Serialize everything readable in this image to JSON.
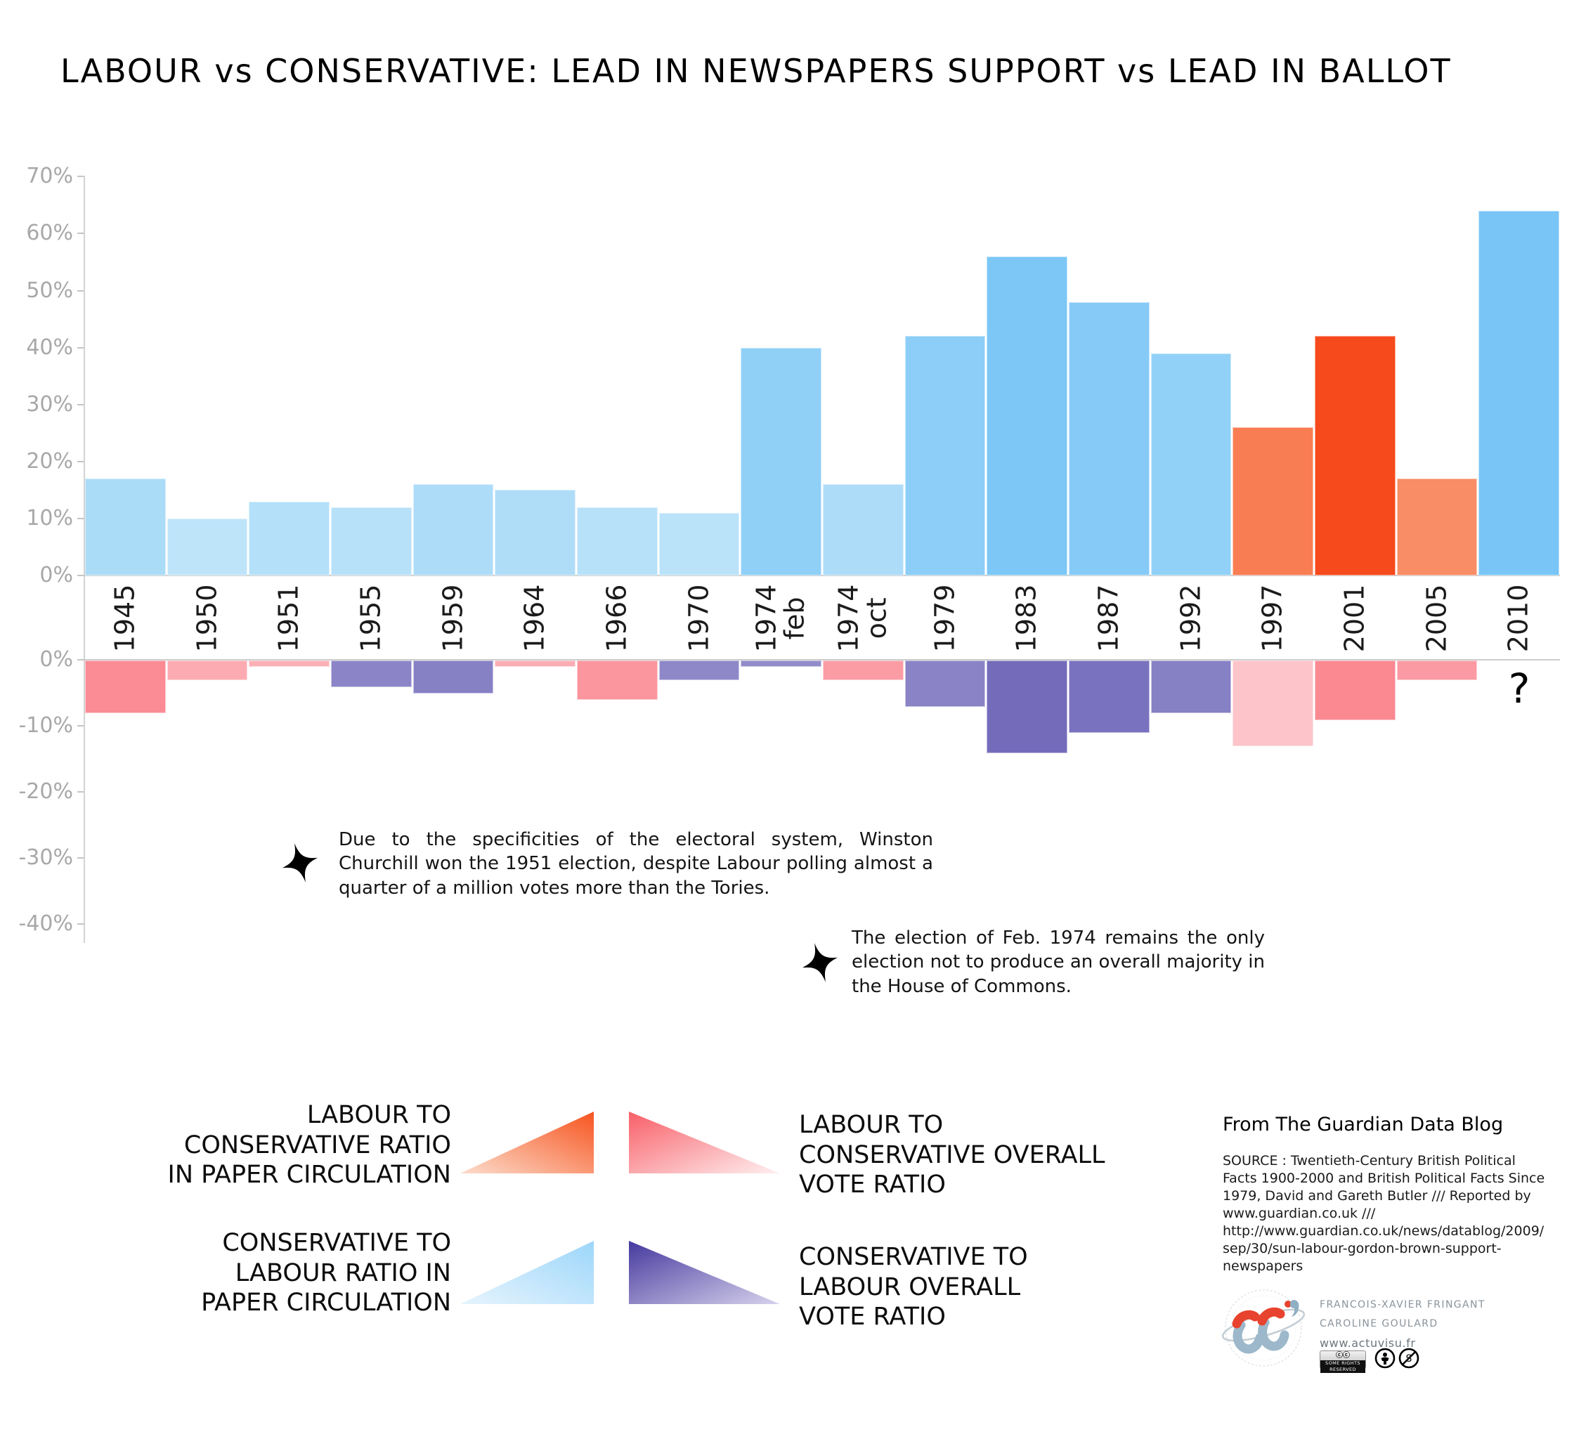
{
  "title": "LABOUR vs CONSERVATIVE: LEAD IN NEWSPAPERS SUPPORT vs LEAD IN BALLOT",
  "chart_data": {
    "type": "bar",
    "orientation": "diverging-vertical",
    "categories": [
      "1945",
      "1950",
      "1951",
      "1955",
      "1959",
      "1964",
      "1966",
      "1970",
      "1974\nfeb",
      "1974\noct",
      "1979",
      "1983",
      "1987",
      "1992",
      "1997",
      "2001",
      "2005",
      "2010"
    ],
    "series": [
      {
        "name": "Lead in newspapers support (paper circulation ratio)",
        "axis": "top",
        "values": [
          17,
          10,
          13,
          12,
          16,
          15,
          12,
          11,
          40,
          16,
          42,
          56,
          48,
          39,
          26,
          42,
          17,
          64
        ],
        "colors": [
          "#aadcf8",
          "#bee4fa",
          "#b4e0f9",
          "#b7e1f9",
          "#acdcf8",
          "#afddf8",
          "#b7e1f9",
          "#bae3f9",
          "#90d0f7",
          "#acdcf8",
          "#8ccef7",
          "#7cc7f6",
          "#86cbf7",
          "#91d1f7",
          "#f97d53",
          "#f6491c",
          "#f98d65",
          "#79c5f6"
        ]
      },
      {
        "name": "Lead in ballot (overall vote ratio)",
        "axis": "bottom",
        "values": [
          -8,
          -3,
          -1,
          -4,
          -5,
          -1,
          -6,
          -3,
          -1,
          -3,
          -7,
          -14,
          -11,
          -8,
          -13,
          -9,
          -3,
          null
        ],
        "colors": [
          "#fb8b94",
          "#fcabb2",
          "#fcb0b6",
          "#8b85c8",
          "#8680c5",
          "#fcadb4",
          "#fb959e",
          "#8e88c9",
          "#928cca",
          "#fb9ca4",
          "#8a83c6",
          "#746cba",
          "#7972be",
          "#8680c5",
          "#fdc4c9",
          "#fa8992",
          "#fb9aa2",
          null
        ]
      }
    ],
    "top_axis": {
      "tick_labels": [
        "70%",
        "60%",
        "50%",
        "40%",
        "30%",
        "20%",
        "10%",
        "0%"
      ],
      "tick_values": [
        70,
        60,
        50,
        40,
        30,
        20,
        10,
        0
      ],
      "range": [
        0,
        70
      ]
    },
    "bottom_axis": {
      "tick_labels": [
        "0%",
        "-10%",
        "-20%",
        "-30%",
        "-40%"
      ],
      "tick_values": [
        0,
        -10,
        -20,
        -30,
        -40
      ],
      "range": [
        0,
        -40
      ]
    },
    "grid": false,
    "legend_position": "bottom",
    "unknown_value_label": "?"
  },
  "annotations": [
    {
      "text": "Due to the specificities of the electoral system, Winston Churchill won the 1951 election, despite Labour polling almost a quarter of a million votes more than the Tories."
    },
    {
      "text": "The election of Feb. 1974 remains the only election not to produce an overall majority in the House of Commons."
    }
  ],
  "legend": {
    "items": [
      {
        "label": "LABOUR TO\nCONSERVATIVE RATIO\nIN PAPER CIRCULATION",
        "gradient": [
          "#fcdccb",
          "#f7541f"
        ],
        "shape": "apex-top-right"
      },
      {
        "label": "LABOUR TO\nCONSERVATIVE OVERALL\nVOTE RATIO",
        "gradient": [
          "#f85f68",
          "#feeff0"
        ],
        "shape": "apex-top-left"
      },
      {
        "label": "CONSERVATIVE TO\nLABOUR RATIO IN\nPAPER CIRCULATION",
        "gradient": [
          "#e6f4fd",
          "#9cd6fa"
        ],
        "shape": "apex-top-right"
      },
      {
        "label": "CONSERVATIVE TO\nLABOUR OVERALL\nVOTE RATIO",
        "gradient": [
          "#46399e",
          "#d6d2ec"
        ],
        "shape": "apex-top-left"
      }
    ]
  },
  "attribution": {
    "heading": "From The Guardian Data Blog",
    "source": "SOURCE : Twentieth-Century British Political\nFacts 1900-2000 and British Political Facts Since\n1979, David and Gareth Butler /// Reported by\nwww.guardian.co.uk  ///\nhttp://www.guardian.co.uk/news/datablog/2009/\nsep/30/sun-labour-gordon-brown-support-\nnewspapers",
    "credits": [
      "FRANCOIS-XAVIER FRINGANT",
      "CAROLINE GOULARD",
      "www.actuvisu.fr"
    ],
    "license": "SOME RIGHTS RESERVED",
    "colors": {
      "labour_strong": "#f6491c",
      "conservative_strong": "#79c5f6",
      "axis_gray": "#a8a8a8"
    }
  }
}
